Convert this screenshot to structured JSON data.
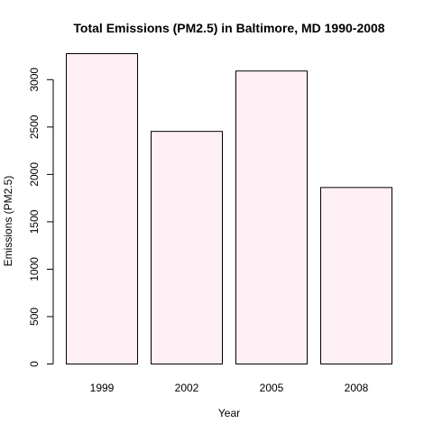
{
  "chart_data": {
    "type": "bar",
    "title": "Total Emissions (PM2.5) in Baltimore, MD 1990-2008",
    "xlabel": "Year",
    "ylabel": "Emissions (PM2.5)",
    "categories": [
      "1999",
      "2002",
      "2005",
      "2008"
    ],
    "values": [
      3274,
      2454,
      3091,
      1862
    ],
    "ylim": [
      0,
      3274
    ],
    "yticks": [
      0,
      500,
      1000,
      1500,
      2000,
      2500,
      3000
    ],
    "grid": false,
    "legend": "none",
    "colors": {
      "bar_fill": "#fff0f5",
      "bar_stroke": "#000000",
      "axis": "#000000"
    }
  }
}
